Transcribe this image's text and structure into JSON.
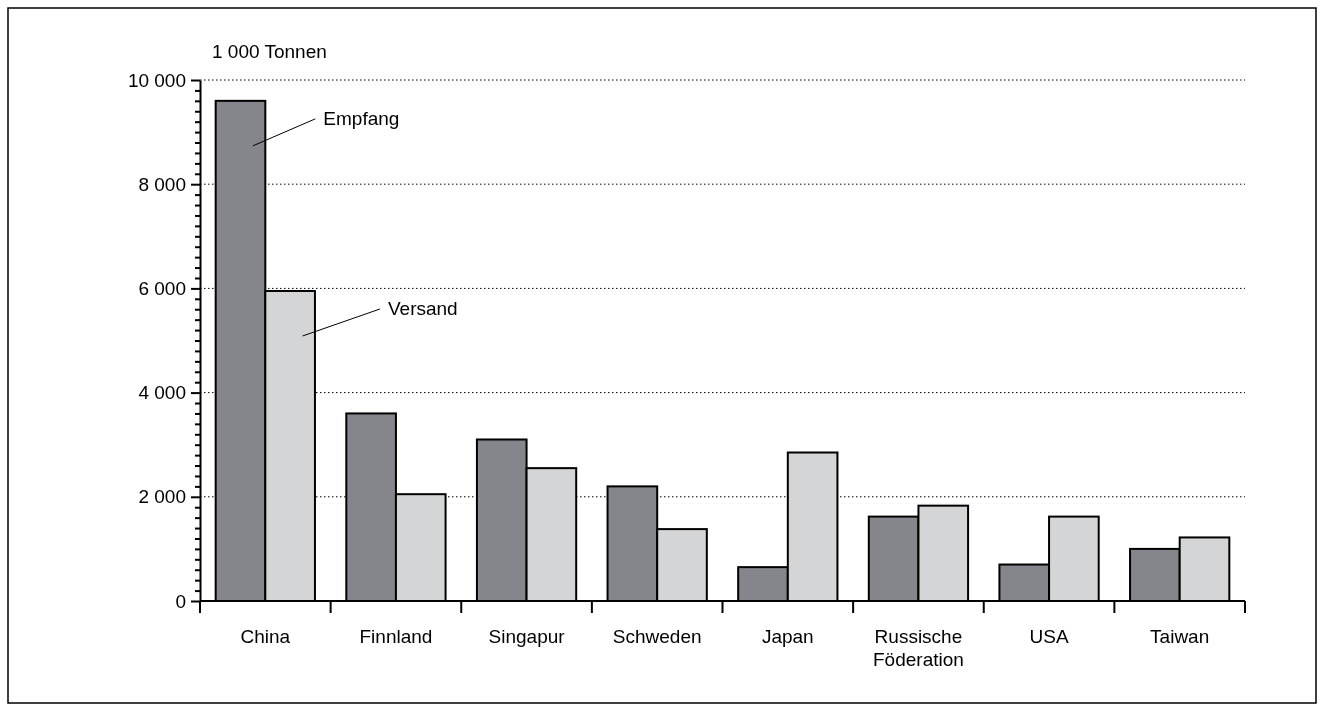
{
  "chart_data": {
    "type": "bar",
    "ylabel": "1 000 Tonnen",
    "categories": [
      "China",
      "Finnland",
      "Singapur",
      "Schweden",
      "Japan",
      "Russische Föderation",
      "USA",
      "Taiwan"
    ],
    "series": [
      {
        "name": "Empfang",
        "color": "#85868b",
        "values": [
          9600,
          3600,
          3100,
          2200,
          650,
          1620,
          700,
          1000
        ]
      },
      {
        "name": "Versand",
        "color": "#d4d5d7",
        "values": [
          5950,
          2050,
          2550,
          1380,
          2850,
          1830,
          1620,
          1220
        ]
      }
    ],
    "ylim": [
      0,
      10000
    ],
    "yticks": [
      {
        "value": 0,
        "label": "0"
      },
      {
        "value": 200,
        "label": null
      },
      {
        "value": 400,
        "label": null
      },
      {
        "value": 600,
        "label": null
      },
      {
        "value": 800,
        "label": null
      },
      {
        "value": 1000,
        "label": null
      },
      {
        "value": 1200,
        "label": null
      },
      {
        "value": 1400,
        "label": null
      },
      {
        "value": 1600,
        "label": null
      },
      {
        "value": 1800,
        "label": null
      },
      {
        "value": 2000,
        "label": "2 000"
      },
      {
        "value": 2200,
        "label": null
      },
      {
        "value": 2400,
        "label": null
      },
      {
        "value": 2600,
        "label": null
      },
      {
        "value": 2800,
        "label": null
      },
      {
        "value": 3000,
        "label": null
      },
      {
        "value": 3200,
        "label": null
      },
      {
        "value": 3400,
        "label": null
      },
      {
        "value": 3600,
        "label": null
      },
      {
        "value": 3800,
        "label": null
      },
      {
        "value": 4000,
        "label": "4 000"
      },
      {
        "value": 4200,
        "label": null
      },
      {
        "value": 4400,
        "label": null
      },
      {
        "value": 4600,
        "label": null
      },
      {
        "value": 4800,
        "label": null
      },
      {
        "value": 5000,
        "label": null
      },
      {
        "value": 5200,
        "label": null
      },
      {
        "value": 5400,
        "label": null
      },
      {
        "value": 5600,
        "label": null
      },
      {
        "value": 5800,
        "label": null
      },
      {
        "value": 6000,
        "label": "6 000"
      },
      {
        "value": 6200,
        "label": null
      },
      {
        "value": 6400,
        "label": null
      },
      {
        "value": 6600,
        "label": null
      },
      {
        "value": 6800,
        "label": null
      },
      {
        "value": 7000,
        "label": null
      },
      {
        "value": 7200,
        "label": null
      },
      {
        "value": 7400,
        "label": null
      },
      {
        "value": 7600,
        "label": null
      },
      {
        "value": 7800,
        "label": null
      },
      {
        "value": 8000,
        "label": "8 000"
      },
      {
        "value": 8200,
        "label": null
      },
      {
        "value": 8400,
        "label": null
      },
      {
        "value": 8600,
        "label": null
      },
      {
        "value": 8800,
        "label": null
      },
      {
        "value": 9000,
        "label": null
      },
      {
        "value": 9200,
        "label": null
      },
      {
        "value": 9400,
        "label": null
      },
      {
        "value": 9600,
        "label": null
      },
      {
        "value": 9800,
        "label": null
      },
      {
        "value": 10000,
        "label": "10 000"
      }
    ],
    "grid": "y",
    "legend": false
  }
}
